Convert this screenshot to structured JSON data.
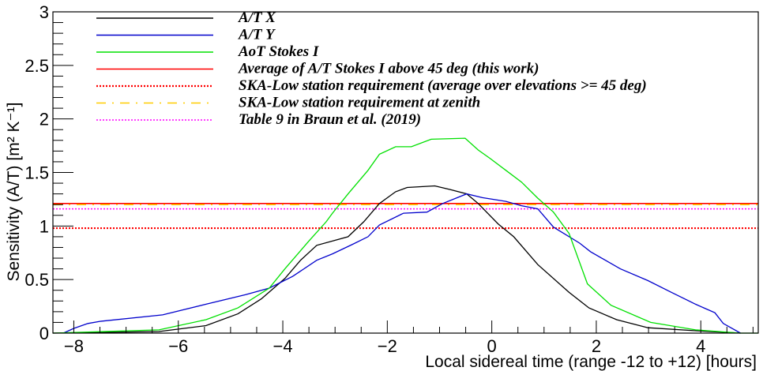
{
  "chart_data": {
    "type": "line",
    "title": "",
    "xlabel": "Local sidereal time (range -12 to +12) [hours]",
    "ylabel": "Sensitivity (A/T) [m² K⁻¹]",
    "xlim": [
      -8.4,
      5.1
    ],
    "ylim": [
      0,
      3
    ],
    "grid": false,
    "legend_position": "top-left",
    "x_ticks": [
      -8,
      -6,
      -4,
      -2,
      0,
      2,
      4
    ],
    "x_tick_labels": [
      "−8",
      "−6",
      "−4",
      "−2",
      "0",
      "2",
      "4"
    ],
    "y_ticks": [
      0,
      0.5,
      1,
      1.5,
      2,
      2.5,
      3
    ],
    "y_tick_labels": [
      "0",
      "0.5",
      "1",
      "1.5",
      "2",
      "2.5",
      "3"
    ],
    "series": [
      {
        "name": "A/T X",
        "color": "#000000",
        "style": "solid",
        "points": [
          [
            -8.4,
            0.0
          ],
          [
            -6.37,
            0.015
          ],
          [
            -5.47,
            0.07
          ],
          [
            -4.86,
            0.18
          ],
          [
            -4.41,
            0.32
          ],
          [
            -3.96,
            0.51
          ],
          [
            -3.66,
            0.68
          ],
          [
            -3.35,
            0.82
          ],
          [
            -2.75,
            0.9
          ],
          [
            -2.45,
            1.04
          ],
          [
            -2.15,
            1.21
          ],
          [
            -1.84,
            1.32
          ],
          [
            -1.62,
            1.36
          ],
          [
            -1.09,
            1.375
          ],
          [
            -0.79,
            1.34
          ],
          [
            -0.48,
            1.3
          ],
          [
            -0.26,
            1.21
          ],
          [
            0.12,
            1.02
          ],
          [
            0.42,
            0.9
          ],
          [
            0.88,
            0.64
          ],
          [
            1.48,
            0.38
          ],
          [
            1.86,
            0.235
          ],
          [
            2.39,
            0.125
          ],
          [
            2.99,
            0.05
          ],
          [
            3.9,
            0.022
          ],
          [
            4.76,
            0.0
          ]
        ]
      },
      {
        "name": "A/T Y",
        "color": "#0000cc",
        "style": "solid",
        "points": [
          [
            -8.2,
            0.0
          ],
          [
            -8.0,
            0.044
          ],
          [
            -7.73,
            0.09
          ],
          [
            -7.5,
            0.11
          ],
          [
            -6.3,
            0.17
          ],
          [
            -5.47,
            0.27
          ],
          [
            -4.71,
            0.36
          ],
          [
            -4.26,
            0.42
          ],
          [
            -3.81,
            0.53
          ],
          [
            -3.35,
            0.68
          ],
          [
            -3.05,
            0.74
          ],
          [
            -2.66,
            0.83
          ],
          [
            -2.37,
            0.9
          ],
          [
            -2.15,
            1.01
          ],
          [
            -1.69,
            1.12
          ],
          [
            -1.24,
            1.13
          ],
          [
            -0.94,
            1.21
          ],
          [
            -0.48,
            1.3
          ],
          [
            -0.18,
            1.265
          ],
          [
            0.27,
            1.23
          ],
          [
            0.57,
            1.19
          ],
          [
            0.88,
            1.16
          ],
          [
            1.18,
            0.99
          ],
          [
            1.68,
            0.84
          ],
          [
            1.89,
            0.76
          ],
          [
            2.46,
            0.6
          ],
          [
            2.99,
            0.49
          ],
          [
            3.44,
            0.38
          ],
          [
            3.9,
            0.27
          ],
          [
            4.27,
            0.19
          ],
          [
            4.43,
            0.09
          ],
          [
            4.76,
            0.0
          ]
        ]
      },
      {
        "name": "AoT Stokes I",
        "color": "#00e000",
        "style": "solid",
        "points": [
          [
            -8.4,
            0.0
          ],
          [
            -6.37,
            0.03
          ],
          [
            -5.47,
            0.125
          ],
          [
            -4.86,
            0.235
          ],
          [
            -4.26,
            0.42
          ],
          [
            -3.96,
            0.6
          ],
          [
            -3.5,
            0.86
          ],
          [
            -3.17,
            1.04
          ],
          [
            -3.05,
            1.12
          ],
          [
            -2.75,
            1.3
          ],
          [
            -2.37,
            1.52
          ],
          [
            -2.15,
            1.67
          ],
          [
            -1.84,
            1.74
          ],
          [
            -1.54,
            1.74
          ],
          [
            -1.16,
            1.81
          ],
          [
            -0.51,
            1.82
          ],
          [
            -0.26,
            1.71
          ],
          [
            -0.03,
            1.63
          ],
          [
            0.27,
            1.52
          ],
          [
            0.57,
            1.41
          ],
          [
            0.88,
            1.26
          ],
          [
            1.18,
            1.13
          ],
          [
            1.48,
            0.93
          ],
          [
            1.83,
            0.46
          ],
          [
            2.28,
            0.26
          ],
          [
            3.04,
            0.1
          ],
          [
            3.9,
            0.03
          ],
          [
            4.76,
            0.0
          ],
          [
            5.1,
            0.0
          ]
        ]
      },
      {
        "name": "Average of A/T Stokes I above 45 deg (this work)",
        "color": "#ff0000",
        "style": "solid",
        "constant": 1.21
      },
      {
        "name": "SKA-Low station requirement (average over elevations >= 45 deg)",
        "color": "#ff0000",
        "style": "dotted",
        "constant": 0.98
      },
      {
        "name": "SKA-Low station requirement at zenith",
        "color": "#ffcc00",
        "style": "dashdot",
        "constant": 1.2
      },
      {
        "name": "Table 9 in Braun et al. (2019)",
        "color": "#ff00ff",
        "style": "dotted",
        "constant": 1.16
      }
    ]
  }
}
